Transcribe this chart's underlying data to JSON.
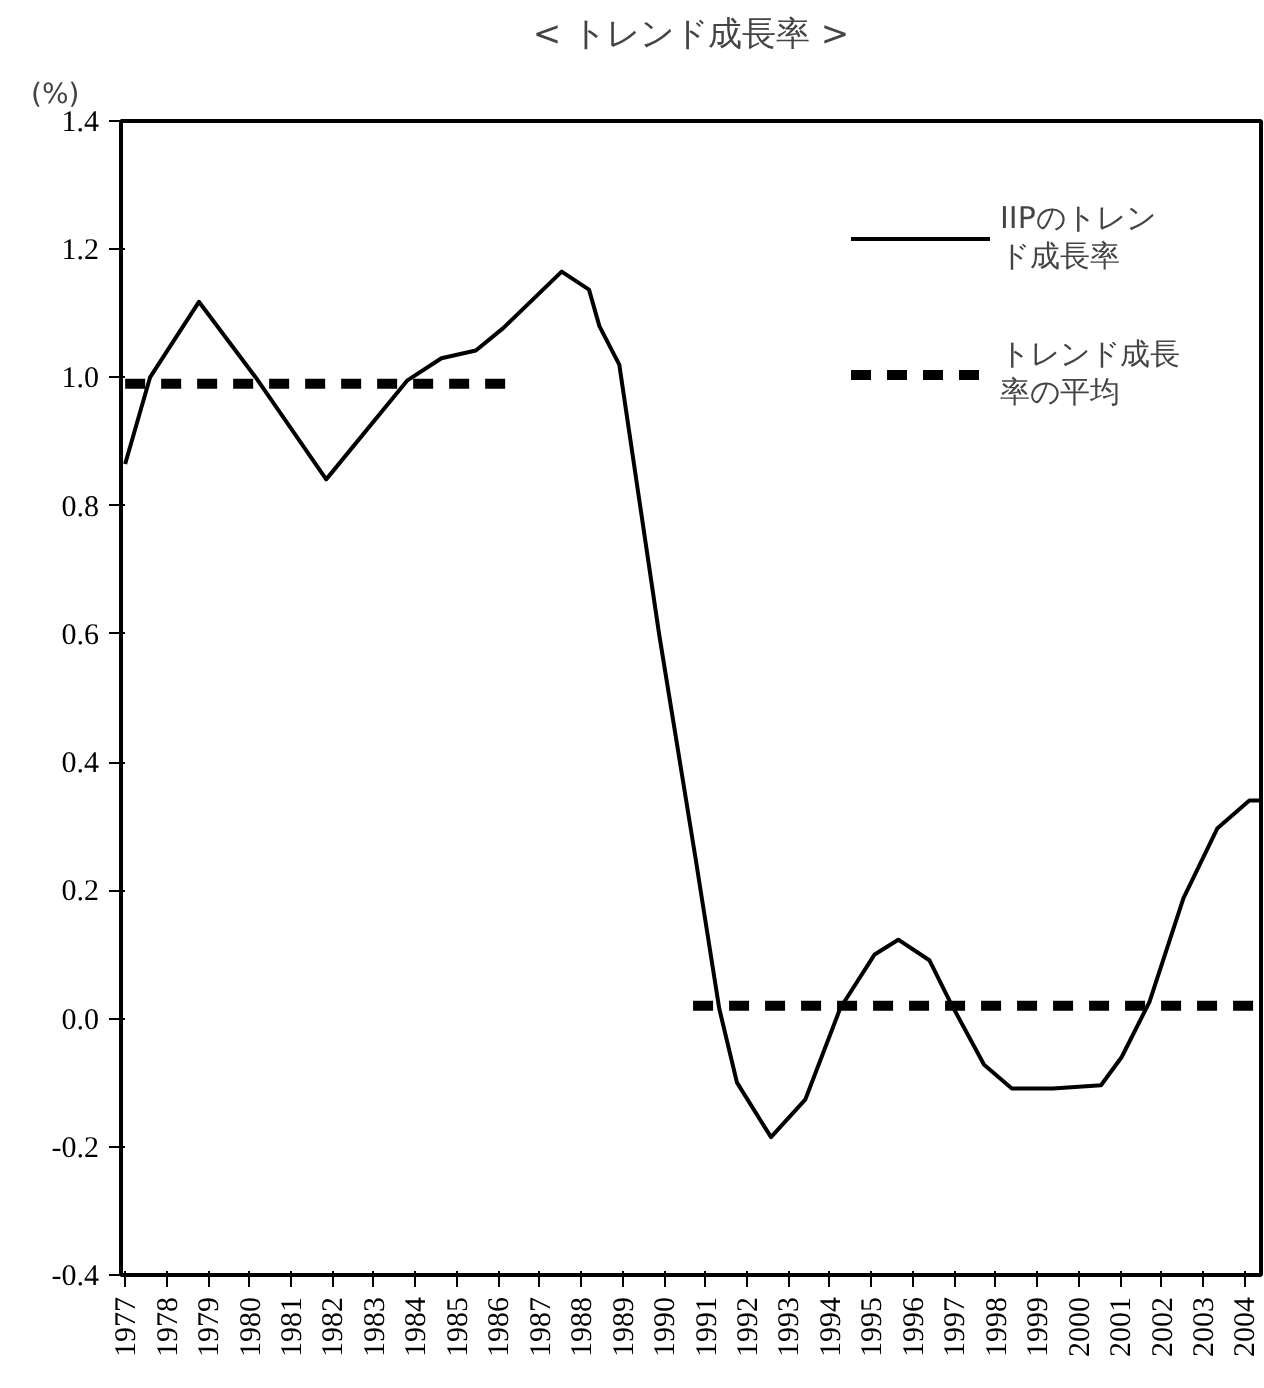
{
  "chart_data": {
    "type": "line",
    "title": "< トレンド成長率 >",
    "ylabel": "(%)",
    "xlim": [
      1976.9,
      2004.4
    ],
    "ylim": [
      -0.4,
      1.4
    ],
    "xticks": [
      1977,
      1978,
      1979,
      1980,
      1981,
      1982,
      1983,
      1984,
      1985,
      1986,
      1987,
      1988,
      1989,
      1990,
      1991,
      1992,
      1993,
      1994,
      1995,
      1996,
      1997,
      1998,
      1999,
      2000,
      2001,
      2002,
      2003,
      2004
    ],
    "yticks": [
      {
        "value": -0.4,
        "label": "-0.4"
      },
      {
        "value": -0.2,
        "label": "-0.2"
      },
      {
        "value": 0,
        "label": "0.0"
      },
      {
        "value": 0.2,
        "label": "0.2"
      },
      {
        "value": 0.4,
        "label": "0.4"
      },
      {
        "value": 0.6,
        "label": "0.6"
      },
      {
        "value": 0.8,
        "label": "0.8"
      },
      {
        "value": 1.0,
        "label": "1.0"
      },
      {
        "value": 1.2,
        "label": "1.2"
      },
      {
        "value": 1.4,
        "label": "1.4"
      }
    ],
    "grid": false,
    "legend": "top right",
    "series": [
      {
        "name": "IIPのトレンド成長率",
        "color": "#000000",
        "line_style": "solid",
        "x": [
          1977.0,
          1977.6,
          1978.78,
          1980.15,
          1981.85,
          1983.8,
          1984.63,
          1985.46,
          1986.12,
          1987.53,
          1988.19,
          1988.44,
          1988.92,
          1989.88,
          1990.75,
          1991.33,
          1991.76,
          1992.58,
          1993.41,
          1994.25,
          1995.08,
          1995.65,
          1996.4,
          1996.9,
          1997.72,
          1998.39,
          1999.38,
          2000.54,
          2001.04,
          2001.71,
          2002.53,
          2003.35,
          2004.12,
          2004.4
        ],
        "values": [
          0.865,
          1.0,
          1.118,
          1.0,
          0.841,
          0.995,
          1.03,
          1.042,
          1.077,
          1.165,
          1.137,
          1.08,
          1.02,
          0.6,
          0.254,
          0.016,
          -0.1,
          -0.185,
          -0.126,
          0.016,
          0.1,
          0.123,
          0.091,
          0.026,
          -0.072,
          -0.109,
          -0.109,
          -0.104,
          -0.06,
          0.026,
          0.188,
          0.297,
          0.34,
          0.34
        ]
      },
      {
        "name": "トレンド成長率の平均",
        "color": "#000000",
        "line_style": "dashed",
        "x": [
          1977.0,
          1986.25,
          1988.5,
          1990.7,
          2004.4
        ],
        "values": [
          0.99,
          0.99,
          null,
          0.02,
          0.02
        ]
      }
    ]
  }
}
